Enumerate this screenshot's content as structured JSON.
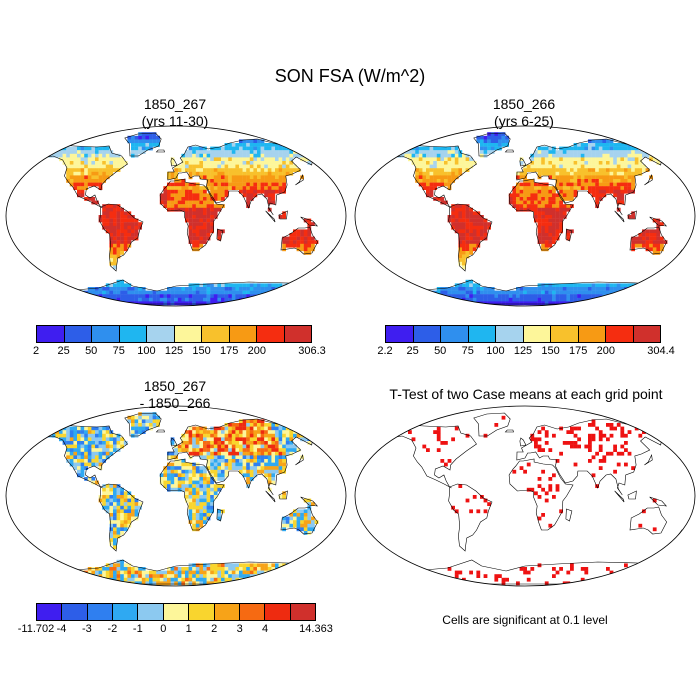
{
  "main_title": "SON FSA (W/m^2)",
  "panels": [
    {
      "id": "p1",
      "title": "1850_267\n(yrs 11-30)",
      "kind": "field"
    },
    {
      "id": "p2",
      "title": "1850_266\n(yrs 6-25)",
      "kind": "field"
    },
    {
      "id": "p3",
      "title": "1850_267\n- 1850_266",
      "kind": "diff"
    },
    {
      "id": "p4",
      "title": "T-Test of two Case means at each grid point",
      "kind": "ttest"
    }
  ],
  "colorbars": {
    "field_colors": [
      "#3f1ef0",
      "#2d5ee8",
      "#2f8fee",
      "#1fb6f0",
      "#a6d3ee",
      "#fdf69a",
      "#f8c12c",
      "#f79a14",
      "#f52d10",
      "#d0302c"
    ],
    "cb1_labels": [
      "2",
      "25",
      "50",
      "75",
      "100",
      "125",
      "150",
      "175",
      "200",
      "306.3"
    ],
    "cb2_labels": [
      "2.2",
      "25",
      "50",
      "75",
      "100",
      "125",
      "150",
      "175",
      "200",
      "304.4"
    ],
    "diff_colors": [
      "#3f1ef0",
      "#2d5ee8",
      "#2f7ff0",
      "#2fa9f2",
      "#8cc9f0",
      "#fdf69a",
      "#f9d52e",
      "#f7a318",
      "#f66a12",
      "#ee2b10",
      "#d0302c"
    ],
    "cb3_labels": [
      "-11.702",
      "-4",
      "-3",
      "-2",
      "-1",
      "0",
      "1",
      "2",
      "3",
      "4",
      "14.363"
    ]
  },
  "significance_note": "Cells are significant at 0.1 level",
  "significance_color": "#ee1212"
}
